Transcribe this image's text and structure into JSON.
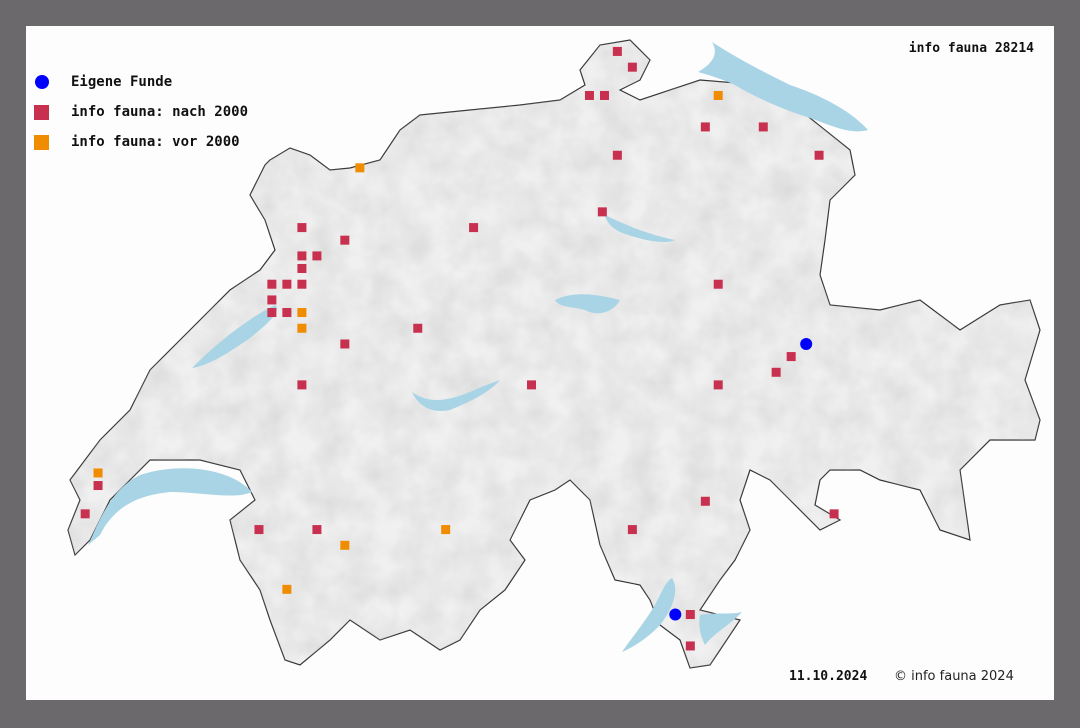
{
  "title": "info fauna 28214",
  "date": "11.10.2024",
  "copyright": "© info fauna 2024",
  "legend": [
    {
      "label": "Eigene Funde",
      "symbol": "circle",
      "color": "#0000ff"
    },
    {
      "label": "info fauna: nach 2000",
      "symbol": "square",
      "color": "#c8304f"
    },
    {
      "label": "info fauna: vor 2000",
      "symbol": "square",
      "color": "#f08c00"
    }
  ],
  "colors": {
    "lake": "#a8d4e6",
    "land": "#f0f0f0",
    "border": "#333333",
    "background": "#6b696b"
  },
  "records": {
    "own": [
      [
        9.4,
        46.85
      ],
      [
        8.79,
        45.99
      ]
    ],
    "after_2000": [
      [
        8.52,
        47.78
      ],
      [
        8.59,
        47.73
      ],
      [
        8.39,
        47.64
      ],
      [
        8.46,
        47.64
      ],
      [
        8.93,
        47.54
      ],
      [
        9.2,
        47.54
      ],
      [
        8.52,
        47.45
      ],
      [
        9.46,
        47.45
      ],
      [
        8.45,
        47.27
      ],
      [
        7.85,
        47.22
      ],
      [
        7.05,
        47.22
      ],
      [
        7.25,
        47.18
      ],
      [
        7.05,
        47.13
      ],
      [
        7.12,
        47.13
      ],
      [
        7.05,
        47.09
      ],
      [
        6.91,
        47.04
      ],
      [
        6.98,
        47.04
      ],
      [
        7.05,
        47.04
      ],
      [
        6.91,
        46.99
      ],
      [
        6.91,
        46.95
      ],
      [
        6.98,
        46.95
      ],
      [
        7.59,
        46.9
      ],
      [
        7.25,
        46.85
      ],
      [
        8.99,
        47.04
      ],
      [
        9.33,
        46.81
      ],
      [
        9.26,
        46.76
      ],
      [
        8.99,
        46.72
      ],
      [
        8.12,
        46.72
      ],
      [
        7.05,
        46.72
      ],
      [
        6.1,
        46.4
      ],
      [
        6.04,
        46.31
      ],
      [
        6.85,
        46.26
      ],
      [
        7.12,
        46.26
      ],
      [
        8.59,
        46.26
      ],
      [
        8.93,
        46.35
      ],
      [
        9.53,
        46.31
      ],
      [
        8.86,
        45.99
      ],
      [
        8.86,
        45.89
      ]
    ],
    "before_2000": [
      [
        8.99,
        47.64
      ],
      [
        7.32,
        47.41
      ],
      [
        7.05,
        46.95
      ],
      [
        7.05,
        46.9
      ],
      [
        6.1,
        46.44
      ],
      [
        7.72,
        46.26
      ],
      [
        7.25,
        46.21
      ],
      [
        6.98,
        46.07
      ]
    ]
  }
}
